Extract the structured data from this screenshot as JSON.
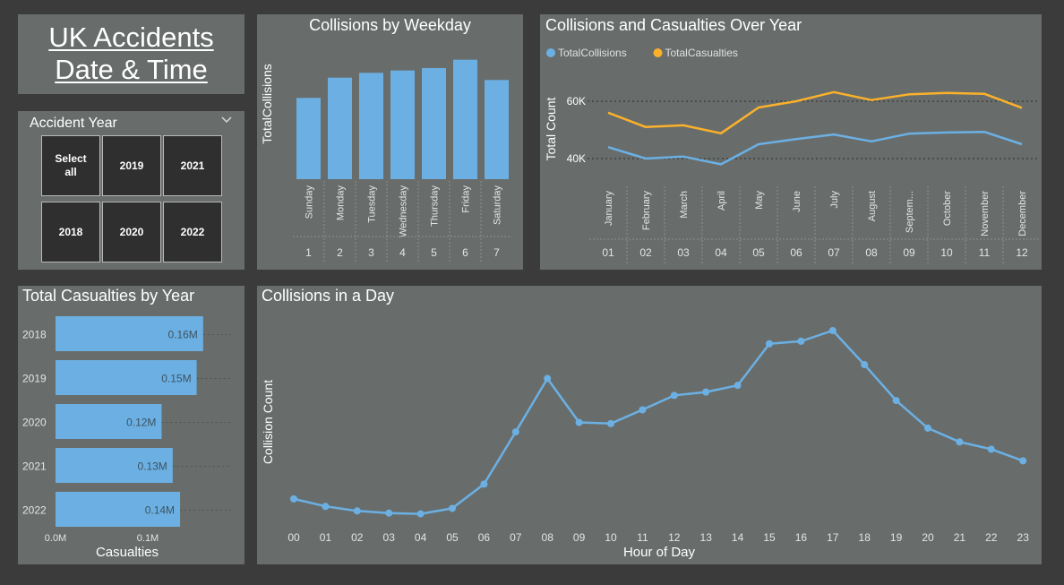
{
  "header": {
    "title_line1": "UK Accidents ",
    "title_line2": "Date & Time"
  },
  "slicer": {
    "title": "Accident Year",
    "options": [
      {
        "label": "Select\nall"
      },
      {
        "label": "2019"
      },
      {
        "label": "2021"
      },
      {
        "label": "2018"
      },
      {
        "label": "2020"
      },
      {
        "label": "2022"
      }
    ]
  },
  "colors": {
    "panel": "#686d6c",
    "background": "#3b3b3b",
    "blue": "#6cb0e3",
    "orange": "#fbb12a"
  },
  "chart_data": [
    {
      "id": "weekday",
      "type": "bar",
      "title": "Collisions by Weekday",
      "ylabel": "TotalCollisions",
      "categories": [
        "Sunday",
        "Monday",
        "Tuesday",
        "Wednesday",
        "Thursday",
        "Friday",
        "Saturday"
      ],
      "category_numbers": [
        "1",
        "2",
        "3",
        "4",
        "5",
        "6",
        "7"
      ],
      "values": [
        0.68,
        0.85,
        0.89,
        0.91,
        0.93,
        1.0,
        0.83
      ],
      "ylim": [
        0,
        1.02
      ]
    },
    {
      "id": "monthly",
      "type": "line",
      "title": "Collisions and Casualties Over Year",
      "ylabel": "Total Count",
      "categories": [
        "January",
        "February",
        "March",
        "April",
        "May",
        "June",
        "July",
        "August",
        "Septem...",
        "October",
        "November",
        "December"
      ],
      "category_numbers": [
        "01",
        "02",
        "03",
        "04",
        "05",
        "06",
        "07",
        "08",
        "09",
        "10",
        "11",
        "12"
      ],
      "yticks": [
        40000,
        60000
      ],
      "ytick_labels": [
        "40K",
        "60K"
      ],
      "ylim": [
        30000,
        65000
      ],
      "grid": true,
      "legend": "top-left",
      "series": [
        {
          "name": "TotalCollisions",
          "color": "#6cb0e3",
          "values": [
            44000,
            40000,
            40700,
            38000,
            45000,
            46800,
            48400,
            46000,
            48700,
            49100,
            49300,
            45000
          ]
        },
        {
          "name": "TotalCasualties",
          "color": "#fbb12a",
          "values": [
            56000,
            51000,
            51600,
            48800,
            57800,
            60000,
            63200,
            60400,
            62400,
            62900,
            62600,
            57700
          ]
        }
      ]
    },
    {
      "id": "casualties_by_year",
      "type": "bar",
      "orientation": "horizontal",
      "title": "Total Casualties by Year",
      "xlabel": "Casualties",
      "categories": [
        "2018",
        "2019",
        "2020",
        "2021",
        "2022"
      ],
      "values": [
        160000,
        153000,
        115000,
        127000,
        135000
      ],
      "value_labels": [
        "0.16M",
        "0.15M",
        "0.12M",
        "0.13M",
        "0.14M"
      ],
      "xticks": [
        0,
        100000
      ],
      "xtick_labels": [
        "0.0M",
        "0.1M"
      ],
      "xlim": [
        0,
        165000
      ]
    },
    {
      "id": "hourly",
      "type": "line",
      "title": "Collisions in a Day",
      "xlabel": "Hour of Day",
      "ylabel": "Collision Count",
      "categories": [
        "00",
        "01",
        "02",
        "03",
        "04",
        "05",
        "06",
        "07",
        "08",
        "09",
        "10",
        "11",
        "12",
        "13",
        "14",
        "15",
        "16",
        "17",
        "18",
        "19",
        "20",
        "21",
        "22",
        "23"
      ],
      "values": [
        0.146,
        0.108,
        0.085,
        0.074,
        0.07,
        0.098,
        0.221,
        0.486,
        0.757,
        0.534,
        0.528,
        0.598,
        0.671,
        0.688,
        0.722,
        0.933,
        0.946,
        1.0,
        0.827,
        0.645,
        0.505,
        0.435,
        0.398,
        0.339
      ],
      "ylim": [
        0,
        1.1
      ]
    }
  ]
}
